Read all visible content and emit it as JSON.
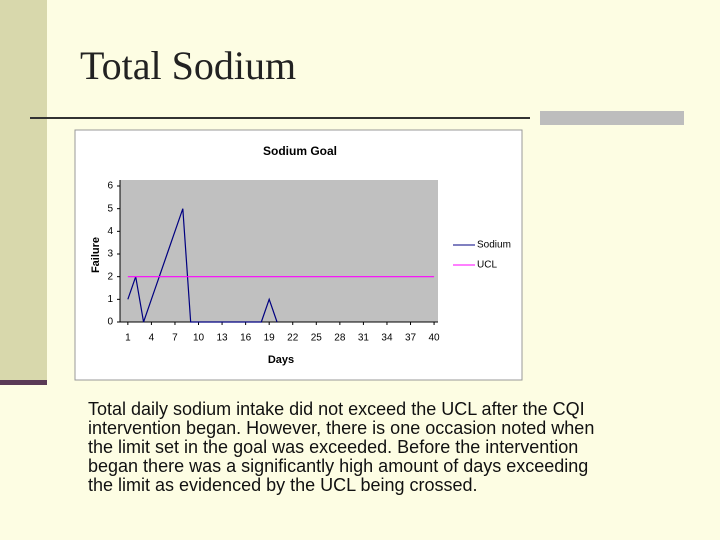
{
  "slide": {
    "title": "Total Sodium",
    "body_lines": [
      "Total daily sodium intake did not exceed the UCL after the CQI",
      "intervention began.  However, there is one occasion noted when",
      "the limit set in the goal was exceeded.  Before the intervention",
      "began there was a significantly high amount of days exceeding",
      "the limit as evidenced by the UCL being crossed."
    ]
  },
  "chart_data": {
    "type": "line",
    "title": "Sodium Goal",
    "x_label": "Days",
    "y_label": "Failure",
    "xlim": [
      0,
      40.5
    ],
    "xticks": [
      1,
      4,
      7,
      10,
      13,
      16,
      19,
      22,
      25,
      28,
      31,
      34,
      37,
      40
    ],
    "ylim": [
      0,
      6
    ],
    "yticks": [
      0,
      1,
      2,
      3,
      4,
      5,
      6
    ],
    "grid": false,
    "legend": "right",
    "series": [
      {
        "name": "Sodium",
        "color": "#000080",
        "x": [
          1,
          2,
          3,
          4,
          5,
          6,
          7,
          8,
          9,
          10,
          11,
          12,
          13,
          14,
          15,
          16,
          17,
          18,
          19,
          20
        ],
        "values": [
          1,
          2,
          0,
          1,
          2,
          3,
          4,
          5,
          0,
          0,
          0,
          0,
          0,
          0,
          0,
          0,
          0,
          0,
          1,
          0
        ]
      },
      {
        "name": "UCL",
        "color": "#ff00ff",
        "x": [
          1,
          2,
          3,
          4,
          5,
          6,
          7,
          8,
          9,
          10,
          11,
          12,
          13,
          14,
          15,
          16,
          17,
          18,
          19,
          20,
          21,
          22,
          23,
          24,
          25,
          26,
          27,
          28,
          29,
          30,
          31,
          32,
          33,
          34,
          35,
          36,
          37,
          38,
          39,
          40
        ],
        "values": [
          2,
          2,
          2,
          2,
          2,
          2,
          2,
          2,
          2,
          2,
          2,
          2,
          2,
          2,
          2,
          2,
          2,
          2,
          2,
          2,
          2,
          2,
          2,
          2,
          2,
          2,
          2,
          2,
          2,
          2,
          2,
          2,
          2,
          2,
          2,
          2,
          2,
          2,
          2,
          2
        ]
      }
    ]
  }
}
